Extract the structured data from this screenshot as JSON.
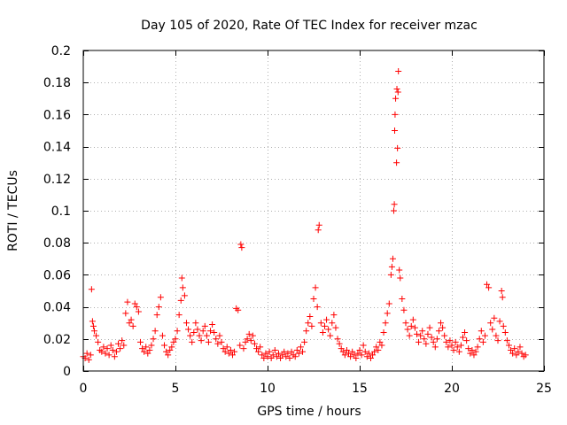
{
  "chart_data": {
    "type": "scatter",
    "title": "Day 105 of 2020, Rate Of TEC Index for receiver mzac",
    "xlabel": "GPS time / hours",
    "ylabel": "ROTI / TECUs",
    "xlim": [
      0,
      25
    ],
    "ylim": [
      0,
      0.2
    ],
    "xticks": [
      0,
      5,
      10,
      15,
      20,
      25
    ],
    "xtick_labels": [
      "0",
      "5",
      "10",
      "15",
      "20",
      "25"
    ],
    "yticks": [
      0,
      0.02,
      0.04,
      0.06,
      0.08,
      0.1,
      0.12,
      0.14,
      0.16,
      0.18,
      0.2
    ],
    "ytick_labels": [
      "0",
      "0.02",
      "0.04",
      "0.06",
      "0.08",
      "0.1",
      "0.12",
      "0.14",
      "0.16",
      "0.18",
      "0.2"
    ],
    "grid": true,
    "marker": "+",
    "color": "#ff0000",
    "series": [
      {
        "name": "ROTI",
        "points": [
          [
            0.0,
            0.009
          ],
          [
            0.1,
            0.008
          ],
          [
            0.2,
            0.011
          ],
          [
            0.3,
            0.007
          ],
          [
            0.4,
            0.01
          ],
          [
            0.45,
            0.051
          ],
          [
            0.5,
            0.031
          ],
          [
            0.55,
            0.028
          ],
          [
            0.6,
            0.025
          ],
          [
            0.7,
            0.022
          ],
          [
            0.8,
            0.018
          ],
          [
            0.9,
            0.013
          ],
          [
            1.0,
            0.012
          ],
          [
            1.1,
            0.015
          ],
          [
            1.2,
            0.011
          ],
          [
            1.3,
            0.014
          ],
          [
            1.4,
            0.01
          ],
          [
            1.5,
            0.016
          ],
          [
            1.6,
            0.013
          ],
          [
            1.7,
            0.009
          ],
          [
            1.8,
            0.012
          ],
          [
            1.9,
            0.017
          ],
          [
            2.0,
            0.014
          ],
          [
            2.1,
            0.019
          ],
          [
            2.2,
            0.016
          ],
          [
            2.3,
            0.036
          ],
          [
            2.4,
            0.043
          ],
          [
            2.5,
            0.03
          ],
          [
            2.6,
            0.032
          ],
          [
            2.7,
            0.028
          ],
          [
            2.8,
            0.042
          ],
          [
            2.9,
            0.04
          ],
          [
            3.0,
            0.037
          ],
          [
            3.1,
            0.018
          ],
          [
            3.2,
            0.014
          ],
          [
            3.3,
            0.012
          ],
          [
            3.4,
            0.015
          ],
          [
            3.5,
            0.011
          ],
          [
            3.6,
            0.013
          ],
          [
            3.7,
            0.016
          ],
          [
            3.8,
            0.02
          ],
          [
            3.9,
            0.025
          ],
          [
            4.0,
            0.035
          ],
          [
            4.1,
            0.04
          ],
          [
            4.2,
            0.046
          ],
          [
            4.3,
            0.022
          ],
          [
            4.4,
            0.016
          ],
          [
            4.5,
            0.012
          ],
          [
            4.6,
            0.01
          ],
          [
            4.7,
            0.013
          ],
          [
            4.8,
            0.015
          ],
          [
            4.9,
            0.018
          ],
          [
            5.0,
            0.02
          ],
          [
            5.1,
            0.025
          ],
          [
            5.2,
            0.035
          ],
          [
            5.3,
            0.044
          ],
          [
            5.35,
            0.058
          ],
          [
            5.4,
            0.052
          ],
          [
            5.5,
            0.047
          ],
          [
            5.6,
            0.03
          ],
          [
            5.7,
            0.026
          ],
          [
            5.8,
            0.022
          ],
          [
            5.9,
            0.018
          ],
          [
            6.0,
            0.024
          ],
          [
            6.1,
            0.03
          ],
          [
            6.2,
            0.026
          ],
          [
            6.3,
            0.022
          ],
          [
            6.4,
            0.019
          ],
          [
            6.5,
            0.025
          ],
          [
            6.6,
            0.028
          ],
          [
            6.7,
            0.022
          ],
          [
            6.8,
            0.018
          ],
          [
            6.9,
            0.025
          ],
          [
            7.0,
            0.029
          ],
          [
            7.1,
            0.024
          ],
          [
            7.2,
            0.02
          ],
          [
            7.3,
            0.017
          ],
          [
            7.4,
            0.022
          ],
          [
            7.5,
            0.018
          ],
          [
            7.6,
            0.014
          ],
          [
            7.7,
            0.012
          ],
          [
            7.8,
            0.015
          ],
          [
            7.9,
            0.011
          ],
          [
            8.0,
            0.013
          ],
          [
            8.1,
            0.01
          ],
          [
            8.2,
            0.012
          ],
          [
            8.3,
            0.039
          ],
          [
            8.4,
            0.038
          ],
          [
            8.5,
            0.016
          ],
          [
            8.55,
            0.079
          ],
          [
            8.6,
            0.077
          ],
          [
            8.7,
            0.014
          ],
          [
            8.8,
            0.018
          ],
          [
            8.9,
            0.02
          ],
          [
            9.0,
            0.023
          ],
          [
            9.1,
            0.019
          ],
          [
            9.2,
            0.022
          ],
          [
            9.3,
            0.017
          ],
          [
            9.4,
            0.014
          ],
          [
            9.5,
            0.012
          ],
          [
            9.6,
            0.015
          ],
          [
            9.7,
            0.01
          ],
          [
            9.8,
            0.008
          ],
          [
            9.9,
            0.011
          ],
          [
            10.0,
            0.009
          ],
          [
            10.1,
            0.012
          ],
          [
            10.2,
            0.008
          ],
          [
            10.3,
            0.01
          ],
          [
            10.4,
            0.013
          ],
          [
            10.5,
            0.009
          ],
          [
            10.6,
            0.011
          ],
          [
            10.7,
            0.008
          ],
          [
            10.8,
            0.01
          ],
          [
            10.9,
            0.012
          ],
          [
            11.0,
            0.009
          ],
          [
            11.1,
            0.011
          ],
          [
            11.2,
            0.008
          ],
          [
            11.3,
            0.012
          ],
          [
            11.4,
            0.01
          ],
          [
            11.5,
            0.009
          ],
          [
            11.6,
            0.013
          ],
          [
            11.7,
            0.011
          ],
          [
            11.8,
            0.015
          ],
          [
            11.9,
            0.012
          ],
          [
            12.0,
            0.018
          ],
          [
            12.1,
            0.025
          ],
          [
            12.2,
            0.03
          ],
          [
            12.3,
            0.034
          ],
          [
            12.4,
            0.028
          ],
          [
            12.5,
            0.045
          ],
          [
            12.6,
            0.052
          ],
          [
            12.7,
            0.04
          ],
          [
            12.75,
            0.088
          ],
          [
            12.8,
            0.091
          ],
          [
            12.9,
            0.03
          ],
          [
            13.0,
            0.024
          ],
          [
            13.1,
            0.028
          ],
          [
            13.2,
            0.032
          ],
          [
            13.3,
            0.026
          ],
          [
            13.4,
            0.022
          ],
          [
            13.5,
            0.03
          ],
          [
            13.6,
            0.035
          ],
          [
            13.7,
            0.027
          ],
          [
            13.8,
            0.02
          ],
          [
            13.9,
            0.017
          ],
          [
            14.0,
            0.014
          ],
          [
            14.1,
            0.012
          ],
          [
            14.2,
            0.01
          ],
          [
            14.3,
            0.013
          ],
          [
            14.4,
            0.011
          ],
          [
            14.5,
            0.009
          ],
          [
            14.6,
            0.012
          ],
          [
            14.7,
            0.01
          ],
          [
            14.8,
            0.008
          ],
          [
            14.9,
            0.011
          ],
          [
            15.0,
            0.013
          ],
          [
            15.1,
            0.01
          ],
          [
            15.2,
            0.016
          ],
          [
            15.3,
            0.012
          ],
          [
            15.4,
            0.009
          ],
          [
            15.5,
            0.011
          ],
          [
            15.6,
            0.008
          ],
          [
            15.7,
            0.01
          ],
          [
            15.8,
            0.012
          ],
          [
            15.9,
            0.015
          ],
          [
            16.0,
            0.013
          ],
          [
            16.1,
            0.018
          ],
          [
            16.2,
            0.016
          ],
          [
            16.3,
            0.024
          ],
          [
            16.4,
            0.03
          ],
          [
            16.5,
            0.036
          ],
          [
            16.6,
            0.042
          ],
          [
            16.7,
            0.06
          ],
          [
            16.75,
            0.065
          ],
          [
            16.8,
            0.07
          ],
          [
            16.85,
            0.1
          ],
          [
            16.88,
            0.104
          ],
          [
            16.9,
            0.15
          ],
          [
            16.92,
            0.16
          ],
          [
            16.95,
            0.17
          ],
          [
            17.0,
            0.13
          ],
          [
            17.02,
            0.176
          ],
          [
            17.05,
            0.139
          ],
          [
            17.08,
            0.174
          ],
          [
            17.1,
            0.187
          ],
          [
            17.15,
            0.063
          ],
          [
            17.2,
            0.058
          ],
          [
            17.3,
            0.045
          ],
          [
            17.4,
            0.038
          ],
          [
            17.5,
            0.03
          ],
          [
            17.6,
            0.026
          ],
          [
            17.7,
            0.022
          ],
          [
            17.8,
            0.028
          ],
          [
            17.9,
            0.032
          ],
          [
            18.0,
            0.027
          ],
          [
            18.1,
            0.023
          ],
          [
            18.2,
            0.018
          ],
          [
            18.3,
            0.022
          ],
          [
            18.4,
            0.025
          ],
          [
            18.5,
            0.02
          ],
          [
            18.6,
            0.017
          ],
          [
            18.7,
            0.023
          ],
          [
            18.8,
            0.027
          ],
          [
            18.9,
            0.021
          ],
          [
            19.0,
            0.018
          ],
          [
            19.1,
            0.015
          ],
          [
            19.2,
            0.02
          ],
          [
            19.3,
            0.025
          ],
          [
            19.4,
            0.03
          ],
          [
            19.5,
            0.027
          ],
          [
            19.6,
            0.022
          ],
          [
            19.7,
            0.018
          ],
          [
            19.8,
            0.015
          ],
          [
            19.9,
            0.019
          ],
          [
            20.0,
            0.016
          ],
          [
            20.1,
            0.013
          ],
          [
            20.2,
            0.018
          ],
          [
            20.3,
            0.015
          ],
          [
            20.4,
            0.012
          ],
          [
            20.5,
            0.016
          ],
          [
            20.6,
            0.021
          ],
          [
            20.7,
            0.024
          ],
          [
            20.8,
            0.019
          ],
          [
            20.9,
            0.014
          ],
          [
            21.0,
            0.011
          ],
          [
            21.1,
            0.013
          ],
          [
            21.2,
            0.01
          ],
          [
            21.3,
            0.012
          ],
          [
            21.4,
            0.015
          ],
          [
            21.5,
            0.02
          ],
          [
            21.6,
            0.025
          ],
          [
            21.7,
            0.018
          ],
          [
            21.8,
            0.022
          ],
          [
            21.9,
            0.054
          ],
          [
            22.0,
            0.052
          ],
          [
            22.1,
            0.03
          ],
          [
            22.2,
            0.026
          ],
          [
            22.3,
            0.033
          ],
          [
            22.4,
            0.022
          ],
          [
            22.5,
            0.019
          ],
          [
            22.6,
            0.031
          ],
          [
            22.7,
            0.05
          ],
          [
            22.75,
            0.046
          ],
          [
            22.8,
            0.028
          ],
          [
            22.9,
            0.024
          ],
          [
            23.0,
            0.019
          ],
          [
            23.1,
            0.016
          ],
          [
            23.2,
            0.013
          ],
          [
            23.3,
            0.011
          ],
          [
            23.4,
            0.014
          ],
          [
            23.5,
            0.01
          ],
          [
            23.6,
            0.012
          ],
          [
            23.7,
            0.015
          ],
          [
            23.8,
            0.011
          ],
          [
            23.9,
            0.009
          ],
          [
            24.0,
            0.01
          ]
        ]
      }
    ]
  }
}
